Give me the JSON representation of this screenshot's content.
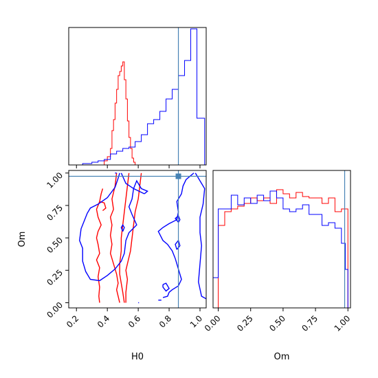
{
  "chart_data": {
    "type": "corner",
    "params": [
      "H0",
      "Om"
    ],
    "truth": {
      "H0": 0.86,
      "Om": 0.975
    },
    "truth_color": "#4682b4",
    "series": [
      {
        "color": "#ff0000"
      },
      {
        "color": "#0000ff"
      }
    ],
    "panels": {
      "H0_hist": {
        "type": "step",
        "xlim": [
          0.15,
          1.04
        ],
        "ylim": [
          0,
          1.0
        ],
        "x_ticks": [
          0.2,
          0.4,
          0.6,
          0.8,
          1.0
        ],
        "red": {
          "edges": [
            0.38,
            0.4,
            0.42,
            0.43,
            0.44,
            0.45,
            0.46,
            0.47,
            0.48,
            0.49,
            0.5,
            0.51,
            0.52,
            0.53,
            0.54,
            0.55,
            0.56,
            0.57,
            0.58
          ],
          "values": [
            0.03,
            0.06,
            0.12,
            0.25,
            0.33,
            0.45,
            0.55,
            0.65,
            0.68,
            0.72,
            0.75,
            0.62,
            0.48,
            0.32,
            0.2,
            0.12,
            0.05,
            0.02
          ]
        },
        "blue": {
          "edges": [
            0.24,
            0.26,
            0.3,
            0.34,
            0.38,
            0.42,
            0.46,
            0.5,
            0.54,
            0.58,
            0.62,
            0.66,
            0.7,
            0.74,
            0.78,
            0.82,
            0.86,
            0.9,
            0.94,
            0.98,
            1.03
          ],
          "values": [
            0.01,
            0.01,
            0.02,
            0.03,
            0.04,
            0.08,
            0.1,
            0.12,
            0.13,
            0.17,
            0.22,
            0.3,
            0.33,
            0.39,
            0.48,
            0.55,
            0.65,
            0.76,
            0.99,
            0.34
          ]
        }
      },
      "Om_hist": {
        "type": "step",
        "xlim": [
          -0.04,
          1.02
        ],
        "ylim": [
          0,
          1.0
        ],
        "x_ticks": [
          0.0,
          0.25,
          0.5,
          0.75,
          1.0
        ],
        "x_tick_labels": [
          "0.00",
          "0.25",
          "0.50",
          "0.75",
          "1.00"
        ],
        "red": {
          "edges": [
            0.0,
            0.05,
            0.1,
            0.15,
            0.2,
            0.25,
            0.3,
            0.35,
            0.4,
            0.45,
            0.5,
            0.55,
            0.6,
            0.65,
            0.7,
            0.75,
            0.8,
            0.85,
            0.9,
            0.95,
            1.0
          ],
          "values": [
            0.6,
            0.7,
            0.72,
            0.74,
            0.76,
            0.8,
            0.78,
            0.8,
            0.76,
            0.86,
            0.83,
            0.8,
            0.84,
            0.81,
            0.8,
            0.8,
            0.76,
            0.8,
            0.7,
            0.72
          ]
        },
        "blue": {
          "edges": [
            -0.04,
            0.0,
            0.05,
            0.1,
            0.15,
            0.2,
            0.25,
            0.3,
            0.35,
            0.4,
            0.45,
            0.5,
            0.55,
            0.6,
            0.65,
            0.7,
            0.75,
            0.8,
            0.85,
            0.9,
            0.95,
            0.98,
            1.0
          ],
          "values": [
            0.22,
            0.72,
            0.72,
            0.82,
            0.75,
            0.8,
            0.76,
            0.82,
            0.78,
            0.85,
            0.8,
            0.72,
            0.7,
            0.72,
            0.75,
            0.68,
            0.68,
            0.6,
            0.62,
            0.58,
            0.47,
            0.28
          ]
        }
      },
      "joint": {
        "xlim": [
          0.15,
          1.04
        ],
        "ylim": [
          -0.04,
          1.02
        ],
        "x_ticks": [
          0.2,
          0.4,
          0.6,
          0.8,
          1.0
        ],
        "y_ticks": [
          0.0,
          0.25,
          0.5,
          0.75,
          1.0
        ],
        "y_tick_labels": [
          "0.00",
          "0.25",
          "0.50",
          "0.75",
          "1.00"
        ],
        "red_contours": [
          [
            [
              0.35,
              0.0
            ],
            [
              0.345,
              0.05
            ],
            [
              0.35,
              0.12
            ],
            [
              0.34,
              0.2
            ],
            [
              0.35,
              0.27
            ],
            [
              0.33,
              0.33
            ],
            [
              0.35,
              0.38
            ],
            [
              0.34,
              0.45
            ],
            [
              0.33,
              0.5
            ],
            [
              0.34,
              0.55
            ],
            [
              0.36,
              0.6
            ],
            [
              0.34,
              0.66
            ],
            [
              0.33,
              0.72
            ],
            [
              0.35,
              0.78
            ],
            [
              0.36,
              0.84
            ],
            [
              0.37,
              0.88
            ]
          ],
          [
            [
              0.37,
              0.71
            ],
            [
              0.39,
              0.73
            ],
            [
              0.38,
              0.77
            ],
            [
              0.35,
              0.78
            ]
          ],
          [
            [
              0.48,
              0.0
            ],
            [
              0.47,
              0.05
            ],
            [
              0.46,
              0.1
            ],
            [
              0.47,
              0.15
            ],
            [
              0.46,
              0.22
            ],
            [
              0.44,
              0.3
            ],
            [
              0.42,
              0.38
            ],
            [
              0.43,
              0.45
            ],
            [
              0.42,
              0.52
            ],
            [
              0.43,
              0.6
            ],
            [
              0.42,
              0.66
            ],
            [
              0.44,
              0.72
            ],
            [
              0.43,
              0.8
            ],
            [
              0.45,
              0.9
            ],
            [
              0.46,
              1.0
            ]
          ],
          [
            [
              0.51,
              0.0
            ],
            [
              0.5,
              0.08
            ],
            [
              0.49,
              0.15
            ],
            [
              0.48,
              0.22
            ],
            [
              0.48,
              0.3
            ],
            [
              0.49,
              0.4
            ],
            [
              0.49,
              0.5
            ],
            [
              0.5,
              0.6
            ],
            [
              0.51,
              0.7
            ],
            [
              0.52,
              0.8
            ],
            [
              0.53,
              0.9
            ],
            [
              0.54,
              1.0
            ]
          ],
          [
            [
              0.52,
              0.0
            ],
            [
              0.52,
              0.08
            ],
            [
              0.53,
              0.18
            ],
            [
              0.52,
              0.25
            ],
            [
              0.53,
              0.3
            ],
            [
              0.55,
              0.4
            ],
            [
              0.56,
              0.5
            ],
            [
              0.57,
              0.6
            ],
            [
              0.58,
              0.7
            ],
            [
              0.6,
              0.8
            ],
            [
              0.61,
              0.9
            ],
            [
              0.62,
              1.0
            ]
          ]
        ],
        "blue_contours": [
          [
            [
              0.6,
              0.0
            ],
            [
              0.605,
              0.0
            ]
          ],
          [
            [
              0.45,
              1.0
            ],
            [
              0.46,
              1.0
            ]
          ],
          [
            [
              0.64,
              0.84
            ],
            [
              0.66,
              0.86
            ],
            [
              0.62,
              0.88
            ],
            [
              0.59,
              0.94
            ],
            [
              0.57,
              0.88
            ],
            [
              0.56,
              0.8
            ],
            [
              0.54,
              0.74
            ],
            [
              0.56,
              0.68
            ],
            [
              0.59,
              0.6
            ],
            [
              0.54,
              0.54
            ],
            [
              0.52,
              0.48
            ],
            [
              0.51,
              0.38
            ],
            [
              0.49,
              0.32
            ],
            [
              0.45,
              0.26
            ],
            [
              0.4,
              0.21
            ],
            [
              0.35,
              0.17
            ],
            [
              0.29,
              0.18
            ],
            [
              0.26,
              0.24
            ],
            [
              0.24,
              0.32
            ],
            [
              0.24,
              0.42
            ],
            [
              0.22,
              0.48
            ],
            [
              0.23,
              0.57
            ],
            [
              0.25,
              0.63
            ],
            [
              0.27,
              0.69
            ],
            [
              0.29,
              0.73
            ],
            [
              0.34,
              0.76
            ],
            [
              0.4,
              0.81
            ],
            [
              0.45,
              0.89
            ],
            [
              0.47,
              0.96
            ],
            [
              0.48,
              1.0
            ]
          ],
          [
            [
              0.49,
              1.0
            ],
            [
              0.52,
              0.92
            ],
            [
              0.57,
              0.88
            ],
            [
              0.64,
              0.84
            ]
          ],
          [
            [
              0.76,
              0.04
            ],
            [
              0.79,
              0.05
            ],
            [
              0.8,
              0.08
            ],
            [
              0.82,
              0.1
            ],
            [
              0.86,
              0.13
            ],
            [
              0.88,
              0.18
            ],
            [
              0.86,
              0.26
            ],
            [
              0.84,
              0.34
            ],
            [
              0.82,
              0.4
            ],
            [
              0.79,
              0.45
            ],
            [
              0.76,
              0.48
            ],
            [
              0.73,
              0.55
            ],
            [
              0.76,
              0.58
            ],
            [
              0.8,
              0.61
            ],
            [
              0.85,
              0.64
            ],
            [
              0.86,
              0.7
            ],
            [
              0.85,
              0.78
            ],
            [
              0.88,
              0.84
            ],
            [
              0.89,
              0.9
            ],
            [
              0.91,
              0.95
            ],
            [
              0.96,
              1.0
            ]
          ],
          [
            [
              0.97,
              1.0
            ],
            [
              1.0,
              0.94
            ],
            [
              1.03,
              0.88
            ],
            [
              1.02,
              0.76
            ],
            [
              1.0,
              0.66
            ],
            [
              1.0,
              0.54
            ],
            [
              1.01,
              0.44
            ],
            [
              1.0,
              0.3
            ],
            [
              0.99,
              0.16
            ],
            [
              1.01,
              0.05
            ],
            [
              1.04,
              0.03
            ]
          ],
          [
            [
              0.85,
              0.41
            ],
            [
              0.87,
              0.44
            ],
            [
              0.86,
              0.48
            ],
            [
              0.84,
              0.45
            ],
            [
              0.85,
              0.41
            ]
          ],
          [
            [
              0.86,
              0.62
            ],
            [
              0.87,
              0.64
            ],
            [
              0.86,
              0.67
            ],
            [
              0.84,
              0.65
            ],
            [
              0.86,
              0.62
            ]
          ],
          [
            [
              0.5,
              0.55
            ],
            [
              0.51,
              0.58
            ],
            [
              0.5,
              0.6
            ],
            [
              0.49,
              0.58
            ],
            [
              0.5,
              0.55
            ]
          ],
          [
            [
              0.76,
              0.14
            ],
            [
              0.78,
              0.15
            ],
            [
              0.8,
              0.11
            ],
            [
              0.78,
              0.09
            ],
            [
              0.76,
              0.12
            ],
            [
              0.76,
              0.14
            ]
          ],
          [
            [
              0.73,
              0.02
            ],
            [
              0.75,
              0.02
            ]
          ]
        ]
      }
    },
    "xlabels": {
      "H0": "H0",
      "Om": "Om"
    },
    "ylabel": "Om"
  }
}
